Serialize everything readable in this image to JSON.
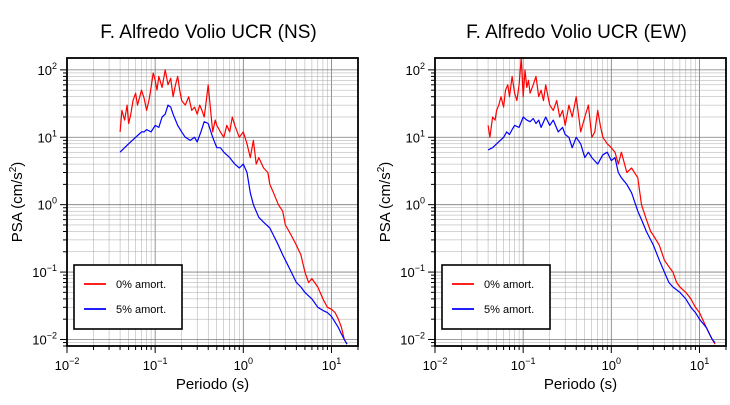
{
  "chart_data": [
    {
      "type": "line",
      "title": "F. Alfredo Volio UCR (NS)",
      "xlabel": "Periodo (s)",
      "ylabel_main": "PSA (cm/s",
      "ylabel_sup": "2",
      "ylabel_tail": ")",
      "x_scale": "log",
      "y_scale": "log",
      "xlim": [
        0.01,
        20
      ],
      "ylim": [
        0.008,
        150
      ],
      "grid": true,
      "legend_placement": "bottom-left",
      "x_ticks": [
        {
          "value": 0.01,
          "base": "10",
          "exp": "−2"
        },
        {
          "value": 0.1,
          "base": "10",
          "exp": "−1"
        },
        {
          "value": 1,
          "base": "10",
          "exp": "0"
        },
        {
          "value": 10,
          "base": "10",
          "exp": "1"
        }
      ],
      "y_ticks": [
        {
          "value": 0.01,
          "base": "10",
          "exp": "−2"
        },
        {
          "value": 0.1,
          "base": "10",
          "exp": "−1"
        },
        {
          "value": 1,
          "base": "10",
          "exp": "0"
        },
        {
          "value": 10,
          "base": "10",
          "exp": "1"
        },
        {
          "value": 100,
          "base": "10",
          "exp": "2"
        }
      ],
      "series": [
        {
          "name": "0% amort.",
          "color": "#ff0000",
          "x": [
            0.04,
            0.042,
            0.045,
            0.048,
            0.05,
            0.053,
            0.056,
            0.06,
            0.063,
            0.067,
            0.07,
            0.075,
            0.08,
            0.085,
            0.09,
            0.095,
            0.1,
            0.105,
            0.11,
            0.12,
            0.13,
            0.14,
            0.15,
            0.16,
            0.17,
            0.18,
            0.19,
            0.2,
            0.22,
            0.24,
            0.26,
            0.28,
            0.3,
            0.32,
            0.34,
            0.36,
            0.38,
            0.4,
            0.42,
            0.45,
            0.48,
            0.5,
            0.55,
            0.6,
            0.65,
            0.7,
            0.75,
            0.8,
            0.9,
            1,
            1.1,
            1.2,
            1.3,
            1.4,
            1.5,
            1.7,
            1.9,
            2,
            2.2,
            2.5,
            2.8,
            3,
            3.5,
            4,
            4.5,
            5,
            5.5,
            6,
            7,
            8,
            9,
            10,
            11,
            12,
            13,
            14,
            15
          ],
          "values": [
            12,
            25,
            18,
            30,
            16,
            22,
            35,
            45,
            30,
            40,
            50,
            38,
            25,
            35,
            55,
            90,
            70,
            50,
            80,
            55,
            100,
            60,
            75,
            40,
            60,
            80,
            50,
            35,
            30,
            40,
            25,
            28,
            22,
            30,
            25,
            20,
            35,
            60,
            30,
            12,
            18,
            15,
            12,
            10,
            15,
            12,
            20,
            15,
            10,
            12,
            8,
            5,
            9,
            4,
            5,
            3.5,
            3,
            2,
            1.5,
            1,
            0.8,
            0.5,
            0.35,
            0.25,
            0.18,
            0.1,
            0.07,
            0.08,
            0.06,
            0.04,
            0.03,
            0.028,
            0.025,
            0.02,
            0.015,
            0.01,
            0.0085
          ]
        },
        {
          "name": "5% amort.",
          "color": "#0000ff",
          "x": [
            0.04,
            0.045,
            0.05,
            0.055,
            0.06,
            0.065,
            0.07,
            0.075,
            0.08,
            0.09,
            0.1,
            0.11,
            0.12,
            0.13,
            0.14,
            0.15,
            0.16,
            0.18,
            0.2,
            0.22,
            0.25,
            0.28,
            0.3,
            0.33,
            0.36,
            0.4,
            0.45,
            0.5,
            0.55,
            0.6,
            0.7,
            0.8,
            0.9,
            1,
            1.1,
            1.2,
            1.3,
            1.5,
            1.7,
            2,
            2.2,
            2.5,
            2.8,
            3,
            3.5,
            4,
            4.5,
            5,
            6,
            7,
            8,
            9,
            10,
            12,
            13,
            14,
            15
          ],
          "values": [
            6,
            7,
            8,
            9,
            10,
            11,
            12,
            12,
            13,
            12,
            15,
            14,
            20,
            22,
            30,
            28,
            22,
            15,
            12,
            10,
            9,
            10,
            8.5,
            12,
            17,
            16,
            10,
            7,
            7,
            6,
            5,
            4,
            3.5,
            4,
            3,
            1.5,
            1,
            0.65,
            0.55,
            0.45,
            0.35,
            0.25,
            0.18,
            0.15,
            0.1,
            0.07,
            0.06,
            0.05,
            0.04,
            0.03,
            0.027,
            0.025,
            0.022,
            0.015,
            0.012,
            0.01,
            0.0085
          ]
        }
      ]
    },
    {
      "type": "line",
      "title": "F. Alfredo Volio UCR (EW)",
      "xlabel": "Periodo (s)",
      "ylabel_main": "PSA (cm/s",
      "ylabel_sup": "2",
      "ylabel_tail": ")",
      "x_scale": "log",
      "y_scale": "log",
      "xlim": [
        0.01,
        20
      ],
      "ylim": [
        0.008,
        150
      ],
      "grid": true,
      "legend_placement": "bottom-left",
      "x_ticks": [
        {
          "value": 0.01,
          "base": "10",
          "exp": "−2"
        },
        {
          "value": 0.1,
          "base": "10",
          "exp": "−1"
        },
        {
          "value": 1,
          "base": "10",
          "exp": "0"
        },
        {
          "value": 10,
          "base": "10",
          "exp": "1"
        }
      ],
      "y_ticks": [
        {
          "value": 0.01,
          "base": "10",
          "exp": "−2"
        },
        {
          "value": 0.1,
          "base": "10",
          "exp": "−1"
        },
        {
          "value": 1,
          "base": "10",
          "exp": "0"
        },
        {
          "value": 10,
          "base": "10",
          "exp": "1"
        },
        {
          "value": 100,
          "base": "10",
          "exp": "2"
        }
      ],
      "series": [
        {
          "name": "0% amort.",
          "color": "#ff0000",
          "x": [
            0.04,
            0.042,
            0.045,
            0.048,
            0.05,
            0.053,
            0.056,
            0.06,
            0.063,
            0.067,
            0.07,
            0.075,
            0.08,
            0.085,
            0.09,
            0.095,
            0.1,
            0.105,
            0.11,
            0.115,
            0.12,
            0.13,
            0.14,
            0.15,
            0.16,
            0.17,
            0.18,
            0.2,
            0.22,
            0.24,
            0.26,
            0.28,
            0.3,
            0.33,
            0.36,
            0.4,
            0.45,
            0.5,
            0.55,
            0.6,
            0.65,
            0.7,
            0.75,
            0.8,
            0.9,
            1,
            1.1,
            1.2,
            1.3,
            1.5,
            1.7,
            2,
            2.2,
            2.5,
            2.8,
            3,
            3.5,
            4,
            4.5,
            5,
            5.5,
            6,
            7,
            8,
            9,
            10,
            12,
            14,
            15
          ],
          "values": [
            15,
            10,
            20,
            18,
            25,
            30,
            40,
            28,
            50,
            60,
            40,
            80,
            45,
            35,
            60,
            150,
            40,
            100,
            55,
            70,
            45,
            60,
            80,
            40,
            50,
            35,
            60,
            30,
            25,
            35,
            20,
            25,
            15,
            30,
            20,
            40,
            12,
            20,
            30,
            10,
            12,
            25,
            15,
            10,
            8,
            7,
            6,
            4,
            6,
            3,
            3.5,
            2.5,
            1,
            0.6,
            0.4,
            0.35,
            0.25,
            0.15,
            0.12,
            0.1,
            0.07,
            0.06,
            0.05,
            0.04,
            0.03,
            0.025,
            0.015,
            0.01,
            0.0085
          ]
        },
        {
          "name": "5% amort.",
          "color": "#0000ff",
          "x": [
            0.04,
            0.045,
            0.05,
            0.055,
            0.06,
            0.065,
            0.07,
            0.075,
            0.08,
            0.09,
            0.1,
            0.11,
            0.12,
            0.13,
            0.14,
            0.15,
            0.16,
            0.18,
            0.2,
            0.22,
            0.25,
            0.28,
            0.3,
            0.33,
            0.36,
            0.4,
            0.45,
            0.5,
            0.55,
            0.6,
            0.7,
            0.8,
            0.9,
            1,
            1.1,
            1.2,
            1.3,
            1.5,
            1.7,
            2,
            2.2,
            2.5,
            2.8,
            3,
            3.5,
            4,
            4.5,
            5,
            6,
            7,
            8,
            9,
            10,
            12,
            13,
            14,
            15
          ],
          "values": [
            6.5,
            7,
            8,
            9,
            10,
            12,
            11,
            13,
            15,
            14,
            20,
            18,
            17,
            19,
            16,
            18,
            14,
            20,
            15,
            18,
            12,
            14,
            11,
            10,
            7,
            10,
            8,
            5,
            6,
            5,
            4,
            5.5,
            6,
            4.5,
            5,
            3,
            2.5,
            2,
            1.5,
            0.8,
            0.6,
            0.4,
            0.3,
            0.25,
            0.15,
            0.1,
            0.07,
            0.06,
            0.05,
            0.04,
            0.03,
            0.025,
            0.02,
            0.015,
            0.012,
            0.01,
            0.009
          ]
        }
      ]
    }
  ]
}
